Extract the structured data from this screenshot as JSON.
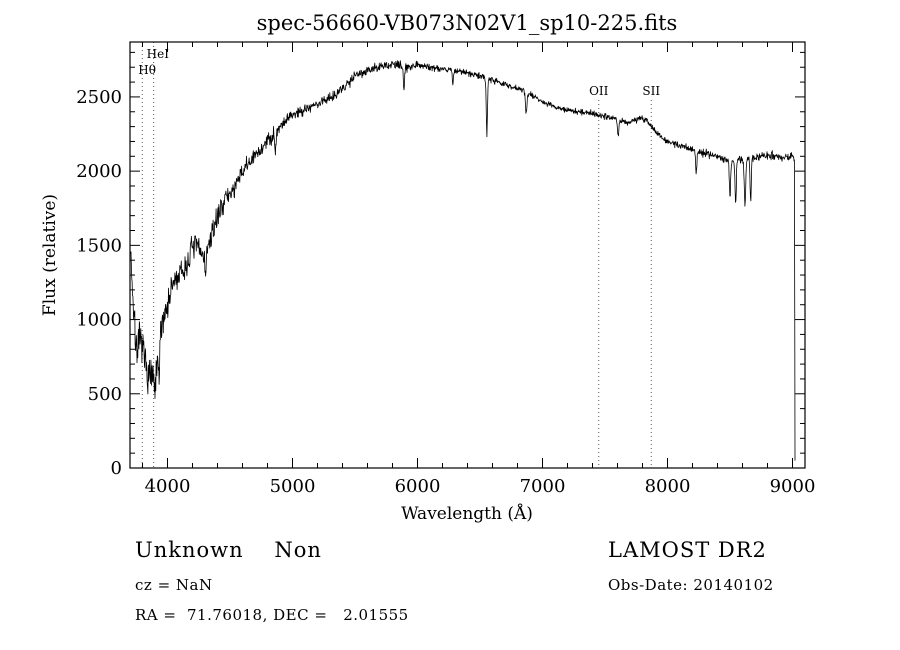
{
  "page": {
    "background": "#ffffff",
    "ink": "#000000"
  },
  "chart_data": {
    "type": "line",
    "title": "spec-56660-VB073N02V1_sp10-225.fits",
    "xlabel": "Wavelength (Å)",
    "ylabel": "Flux (relative)",
    "x_range": [
      3700,
      9100
    ],
    "y_range": [
      0,
      2870
    ],
    "xticks": [
      4000,
      5000,
      6000,
      7000,
      8000,
      9000
    ],
    "yticks": [
      0,
      500,
      1000,
      1500,
      2000,
      2500
    ],
    "x_minor_step": 200,
    "y_minor_step": 100,
    "grid": false,
    "legend": "none",
    "series_color": "#000000",
    "marker_line_color": "#555555",
    "noise_seed": 7,
    "control_points": [
      [
        3705,
        1500
      ],
      [
        3720,
        1200
      ],
      [
        3740,
        900
      ],
      [
        3760,
        800
      ],
      [
        3780,
        850
      ],
      [
        3800,
        820
      ],
      [
        3820,
        700
      ],
      [
        3840,
        650
      ],
      [
        3860,
        620
      ],
      [
        3880,
        600
      ],
      [
        3900,
        520
      ],
      [
        3920,
        700
      ],
      [
        3940,
        850
      ],
      [
        3960,
        1000
      ],
      [
        3980,
        1050
      ],
      [
        4000,
        1100
      ],
      [
        4050,
        1250
      ],
      [
        4100,
        1300
      ],
      [
        4150,
        1350
      ],
      [
        4200,
        1500
      ],
      [
        4250,
        1480
      ],
      [
        4300,
        1420
      ],
      [
        4350,
        1550
      ],
      [
        4400,
        1700
      ],
      [
        4450,
        1800
      ],
      [
        4500,
        1850
      ],
      [
        4550,
        1900
      ],
      [
        4600,
        2000
      ],
      [
        4650,
        2050
      ],
      [
        4700,
        2100
      ],
      [
        4750,
        2150
      ],
      [
        4800,
        2200
      ],
      [
        4850,
        2250
      ],
      [
        4900,
        2300
      ],
      [
        4950,
        2350
      ],
      [
        5000,
        2380
      ],
      [
        5100,
        2420
      ],
      [
        5200,
        2450
      ],
      [
        5300,
        2500
      ],
      [
        5400,
        2550
      ],
      [
        5500,
        2650
      ],
      [
        5600,
        2680
      ],
      [
        5700,
        2700
      ],
      [
        5800,
        2720
      ],
      [
        5900,
        2700
      ],
      [
        6000,
        2720
      ],
      [
        6100,
        2700
      ],
      [
        6200,
        2690
      ],
      [
        6300,
        2680
      ],
      [
        6400,
        2660
      ],
      [
        6500,
        2640
      ],
      [
        6600,
        2620
      ],
      [
        6700,
        2580
      ],
      [
        6800,
        2560
      ],
      [
        6900,
        2520
      ],
      [
        7000,
        2470
      ],
      [
        7100,
        2430
      ],
      [
        7200,
        2410
      ],
      [
        7300,
        2400
      ],
      [
        7400,
        2390
      ],
      [
        7500,
        2370
      ],
      [
        7600,
        2350
      ],
      [
        7700,
        2330
      ],
      [
        7800,
        2360
      ],
      [
        7850,
        2330
      ],
      [
        7900,
        2270
      ],
      [
        7950,
        2230
      ],
      [
        8000,
        2200
      ],
      [
        8100,
        2170
      ],
      [
        8200,
        2150
      ],
      [
        8300,
        2120
      ],
      [
        8400,
        2100
      ],
      [
        8500,
        2070
      ],
      [
        8600,
        2080
      ],
      [
        8700,
        2090
      ],
      [
        8800,
        2110
      ],
      [
        8900,
        2090
      ],
      [
        9000,
        2100
      ],
      [
        9015,
        2080
      ],
      [
        9020,
        50
      ]
    ],
    "noise_profile": [
      [
        3705,
        130
      ],
      [
        3900,
        120
      ],
      [
        4100,
        90
      ],
      [
        4400,
        70
      ],
      [
        4700,
        55
      ],
      [
        5000,
        40
      ],
      [
        5400,
        35
      ],
      [
        5800,
        30
      ],
      [
        6200,
        22
      ],
      [
        6800,
        20
      ],
      [
        7200,
        18
      ],
      [
        7600,
        20
      ],
      [
        8000,
        22
      ],
      [
        8500,
        25
      ],
      [
        9000,
        30
      ]
    ],
    "absorption_dips": [
      {
        "x": 3933,
        "depth": 200,
        "width": 6
      },
      {
        "x": 4305,
        "depth": 120,
        "width": 7
      },
      {
        "x": 4862,
        "depth": 120,
        "width": 7
      },
      {
        "x": 5892,
        "depth": 140,
        "width": 7
      },
      {
        "x": 6283,
        "depth": 110,
        "width": 6
      },
      {
        "x": 6555,
        "depth": 380,
        "width": 7
      },
      {
        "x": 6870,
        "depth": 150,
        "width": 8
      },
      {
        "x": 7605,
        "depth": 110,
        "width": 9
      },
      {
        "x": 8230,
        "depth": 140,
        "width": 8
      },
      {
        "x": 8500,
        "depth": 250,
        "width": 7
      },
      {
        "x": 8545,
        "depth": 300,
        "width": 7
      },
      {
        "x": 8620,
        "depth": 320,
        "width": 8
      },
      {
        "x": 8665,
        "depth": 280,
        "width": 7
      }
    ],
    "line_markers": [
      {
        "label": "HeI",
        "wavelength": 3889,
        "row": 1,
        "full_height": true
      },
      {
        "label": "Hθ",
        "wavelength": 3798,
        "row": 2,
        "full_height": true
      },
      {
        "label": "OII",
        "wavelength": 7450,
        "row": 3,
        "full_height": false
      },
      {
        "label": "SII",
        "wavelength": 7870,
        "row": 3,
        "full_height": false
      }
    ]
  },
  "footer": {
    "class_label": "Unknown    Non",
    "survey": "LAMOST DR2",
    "cz": "cz = NaN",
    "obs_date": "Obs-Date: 20140102",
    "coords": "RA =  71.76018, DEC =   2.01555"
  }
}
